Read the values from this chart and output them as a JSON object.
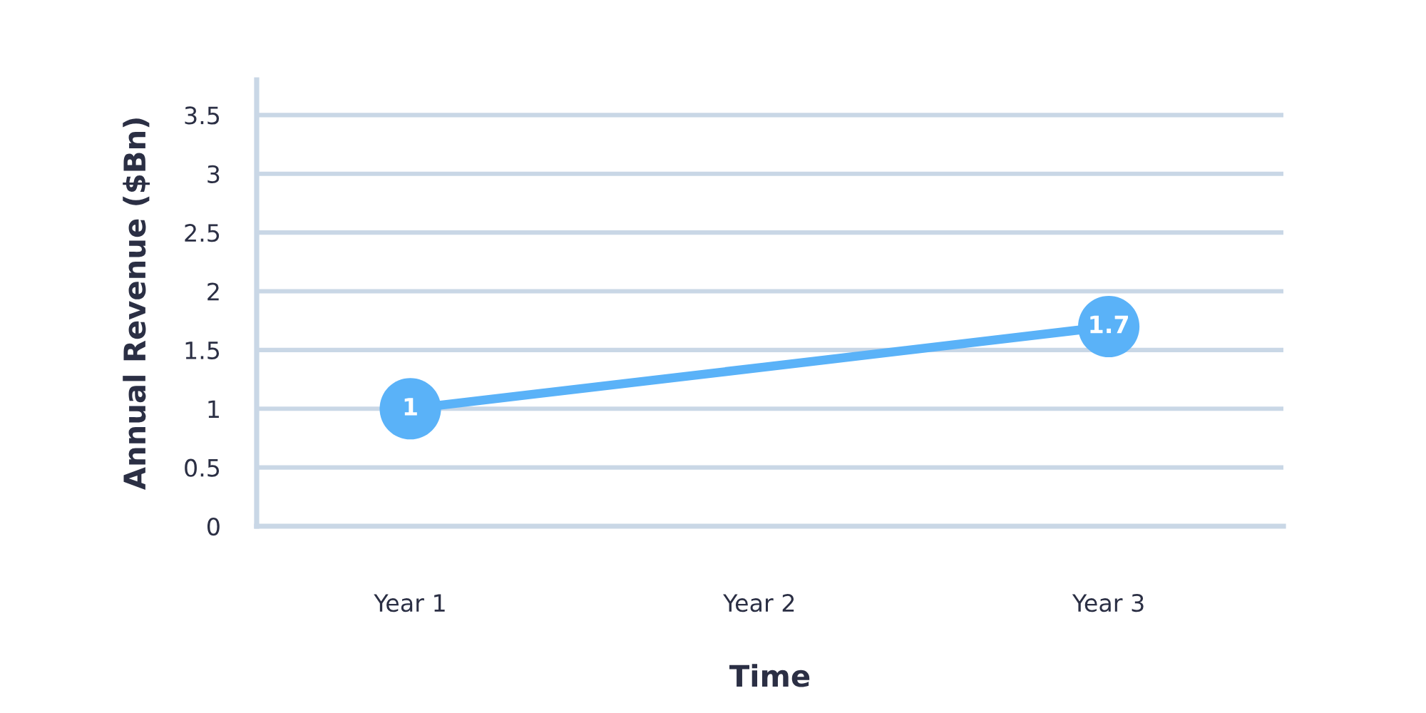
{
  "chart_data": {
    "type": "line",
    "xlabel": "Time",
    "ylabel": "Annual Revenue ($Bn)",
    "categories": [
      "Year 1",
      "Year 2",
      "Year 3"
    ],
    "series": [
      {
        "values": [
          1,
          null,
          1.7
        ],
        "color": "#5ab2f8"
      }
    ],
    "ylim": [
      0,
      3.8
    ],
    "yticks": [
      0,
      0.5,
      1,
      1.5,
      2,
      2.5,
      3,
      3.5
    ],
    "grid": "y",
    "marker": "circle",
    "line_style": "solid",
    "data_labels": true
  }
}
